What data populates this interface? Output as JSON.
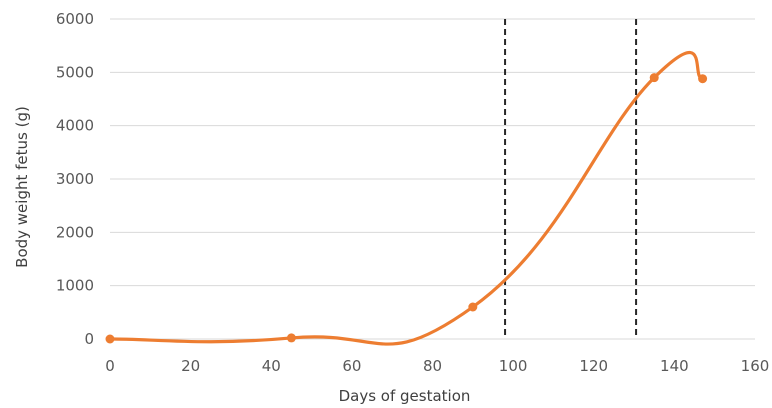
{
  "chart_data": {
    "type": "line",
    "xlabel": "Days of gestation",
    "ylabel": "Body weight fetus (g)",
    "xlim": [
      0,
      160
    ],
    "ylim": [
      0,
      6000
    ],
    "x_ticks": [
      0,
      20,
      40,
      60,
      80,
      100,
      120,
      140,
      160
    ],
    "y_ticks": [
      0,
      1000,
      2000,
      3000,
      4000,
      5000,
      6000
    ],
    "x_tick_labels": [
      "0",
      "20",
      "40",
      "60",
      "80",
      "100",
      "120",
      "140",
      "160"
    ],
    "y_tick_labels": [
      "0",
      "1000",
      "2000",
      "3000",
      "4000",
      "5000",
      "6000"
    ],
    "grid": "horizontal",
    "legend": "none",
    "series": [
      {
        "color": "#ED7D31",
        "smooth": true,
        "x": [
          0,
          45,
          90,
          135,
          147
        ],
        "values": [
          0,
          20,
          600,
          4900,
          4880
        ]
      }
    ],
    "vertical_lines": [
      98,
      130.5
    ]
  }
}
